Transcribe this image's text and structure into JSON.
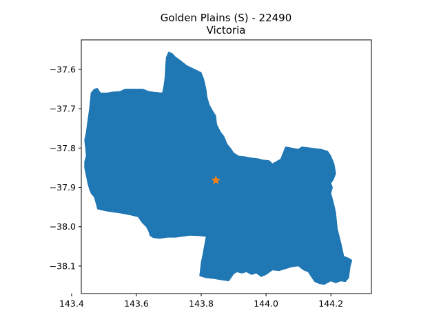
{
  "title": "Golden Plains (S) - 22490",
  "subtitle": "Victoria",
  "colors": {
    "region_fill": "#1f77b4",
    "marker_fill": "#ff7f0e",
    "axis": "#000000",
    "background": "#ffffff"
  },
  "chart_data": {
    "type": "map",
    "region_name": "Golden Plains (S)",
    "region_code": "22490",
    "state": "Victoria",
    "xlim": [
      143.43,
      144.325
    ],
    "ylim": [
      -38.17,
      -37.525
    ],
    "x_ticks": [
      {
        "value": 143.4,
        "label": "143.4"
      },
      {
        "value": 143.6,
        "label": "143.6"
      },
      {
        "value": 143.8,
        "label": "143.8"
      },
      {
        "value": 144.0,
        "label": "144.0"
      },
      {
        "value": 144.2,
        "label": "144.2"
      }
    ],
    "y_ticks": [
      {
        "value": -37.6,
        "label": "−37.6"
      },
      {
        "value": -37.7,
        "label": "−37.7"
      },
      {
        "value": -37.8,
        "label": "−37.8"
      },
      {
        "value": -37.9,
        "label": "−37.9"
      },
      {
        "value": -38.0,
        "label": "−38.0"
      },
      {
        "value": -38.1,
        "label": "−38.1"
      }
    ],
    "marker": {
      "lon": 143.845,
      "lat": -37.882,
      "shape": "star"
    },
    "grid": false,
    "legend": "none",
    "boundary": [
      [
        143.699,
        -37.556
      ],
      [
        143.71,
        -37.559
      ],
      [
        143.72,
        -37.568
      ],
      [
        143.735,
        -37.577
      ],
      [
        143.755,
        -37.59
      ],
      [
        143.78,
        -37.6
      ],
      [
        143.8,
        -37.608
      ],
      [
        143.808,
        -37.625
      ],
      [
        143.815,
        -37.65
      ],
      [
        143.818,
        -37.67
      ],
      [
        143.825,
        -37.69
      ],
      [
        143.835,
        -37.705
      ],
      [
        143.845,
        -37.718
      ],
      [
        143.848,
        -37.74
      ],
      [
        143.86,
        -37.76
      ],
      [
        143.87,
        -37.77
      ],
      [
        143.88,
        -37.79
      ],
      [
        143.89,
        -37.8
      ],
      [
        143.9,
        -37.812
      ],
      [
        143.915,
        -37.82
      ],
      [
        143.935,
        -37.822
      ],
      [
        143.955,
        -37.825
      ],
      [
        143.975,
        -37.827
      ],
      [
        143.99,
        -37.83
      ],
      [
        144.01,
        -37.832
      ],
      [
        144.02,
        -37.84
      ],
      [
        144.03,
        -37.835
      ],
      [
        144.045,
        -37.828
      ],
      [
        144.06,
        -37.797
      ],
      [
        144.08,
        -37.8
      ],
      [
        144.1,
        -37.803
      ],
      [
        144.11,
        -37.797
      ],
      [
        144.14,
        -37.8
      ],
      [
        144.17,
        -37.803
      ],
      [
        144.19,
        -37.808
      ],
      [
        144.2,
        -37.82
      ],
      [
        144.21,
        -37.84
      ],
      [
        144.215,
        -37.865
      ],
      [
        144.208,
        -37.88
      ],
      [
        144.2,
        -37.89
      ],
      [
        144.205,
        -37.9
      ],
      [
        144.2,
        -37.915
      ],
      [
        144.205,
        -37.93
      ],
      [
        144.21,
        -37.945
      ],
      [
        144.215,
        -37.965
      ],
      [
        144.22,
        -38.005
      ],
      [
        144.232,
        -38.045
      ],
      [
        144.24,
        -38.075
      ],
      [
        144.255,
        -38.08
      ],
      [
        144.265,
        -38.085
      ],
      [
        144.26,
        -38.1
      ],
      [
        144.255,
        -38.13
      ],
      [
        144.245,
        -38.14
      ],
      [
        144.23,
        -38.138
      ],
      [
        144.215,
        -38.143
      ],
      [
        144.2,
        -38.138
      ],
      [
        144.18,
        -38.147
      ],
      [
        144.165,
        -38.145
      ],
      [
        144.15,
        -38.14
      ],
      [
        144.14,
        -38.128
      ],
      [
        144.13,
        -38.115
      ],
      [
        144.115,
        -38.11
      ],
      [
        144.1,
        -38.1
      ],
      [
        144.08,
        -38.102
      ],
      [
        144.06,
        -38.107
      ],
      [
        144.04,
        -38.112
      ],
      [
        144.02,
        -38.11
      ],
      [
        144.0,
        -38.122
      ],
      [
        143.985,
        -38.127
      ],
      [
        143.97,
        -38.118
      ],
      [
        143.955,
        -38.122
      ],
      [
        143.94,
        -38.115
      ],
      [
        143.925,
        -38.118
      ],
      [
        143.91,
        -38.115
      ],
      [
        143.9,
        -38.12
      ],
      [
        143.89,
        -38.132
      ],
      [
        143.885,
        -38.138
      ],
      [
        143.86,
        -38.135
      ],
      [
        143.84,
        -38.132
      ],
      [
        143.815,
        -38.13
      ],
      [
        143.795,
        -38.125
      ],
      [
        143.8,
        -38.09
      ],
      [
        143.805,
        -38.07
      ],
      [
        143.815,
        -38.025
      ],
      [
        143.79,
        -38.023
      ],
      [
        143.765,
        -38.022
      ],
      [
        143.74,
        -38.025
      ],
      [
        143.72,
        -38.027
      ],
      [
        143.695,
        -38.027
      ],
      [
        143.672,
        -38.03
      ],
      [
        143.652,
        -38.028
      ],
      [
        143.642,
        -38.023
      ],
      [
        143.637,
        -38.01
      ],
      [
        143.63,
        -38.0
      ],
      [
        143.618,
        -37.99
      ],
      [
        143.605,
        -37.975
      ],
      [
        143.58,
        -37.97
      ],
      [
        143.555,
        -37.966
      ],
      [
        143.53,
        -37.963
      ],
      [
        143.505,
        -37.96
      ],
      [
        143.48,
        -37.955
      ],
      [
        143.475,
        -37.94
      ],
      [
        143.47,
        -37.925
      ],
      [
        143.46,
        -37.915
      ],
      [
        143.455,
        -37.905
      ],
      [
        143.45,
        -37.89
      ],
      [
        143.445,
        -37.87
      ],
      [
        143.44,
        -37.85
      ],
      [
        143.44,
        -37.835
      ],
      [
        143.445,
        -37.82
      ],
      [
        143.443,
        -37.8
      ],
      [
        143.44,
        -37.78
      ],
      [
        143.445,
        -37.76
      ],
      [
        143.45,
        -37.73
      ],
      [
        143.455,
        -37.7
      ],
      [
        143.46,
        -37.66
      ],
      [
        143.47,
        -37.65
      ],
      [
        143.48,
        -37.648
      ],
      [
        143.485,
        -37.655
      ],
      [
        143.49,
        -37.66
      ],
      [
        143.51,
        -37.66
      ],
      [
        143.53,
        -37.657
      ],
      [
        143.55,
        -37.656
      ],
      [
        143.565,
        -37.65
      ],
      [
        143.58,
        -37.65
      ],
      [
        143.6,
        -37.65
      ],
      [
        143.62,
        -37.65
      ],
      [
        143.635,
        -37.655
      ],
      [
        143.655,
        -37.658
      ],
      [
        143.68,
        -37.66
      ],
      [
        143.685,
        -37.64
      ],
      [
        143.688,
        -37.62
      ],
      [
        143.69,
        -37.59
      ],
      [
        143.692,
        -37.57
      ]
    ]
  }
}
